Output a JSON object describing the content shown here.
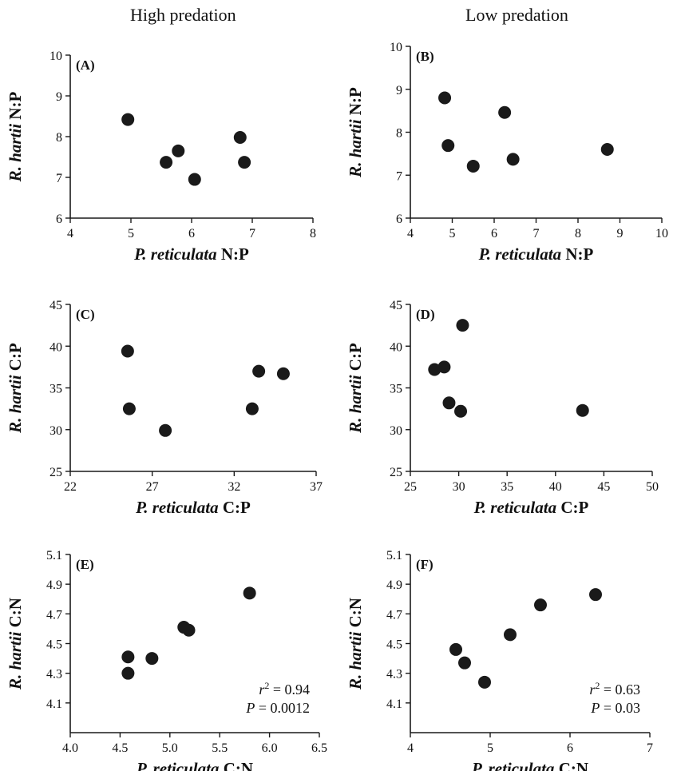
{
  "headers": {
    "left": "High predation",
    "right": "Low predation"
  },
  "colors": {
    "point": "#1a1a1a",
    "axis": "#1a1a1a",
    "background": "#ffffff"
  },
  "chart_data": [
    {
      "id": "A",
      "panel_label": "(A)",
      "type": "scatter",
      "xlabel_italic": "P. reticulata",
      "xlabel_rest": " N:P",
      "ylabel_italic": "R. hartii",
      "ylabel_rest": " N:P",
      "xlim": [
        4,
        8
      ],
      "ylim": [
        6,
        10
      ],
      "xticks": [
        4,
        5,
        6,
        7,
        8
      ],
      "yticks": [
        6,
        7,
        8,
        9,
        10
      ],
      "tick_decimals": 0,
      "points": [
        [
          4.95,
          8.42
        ],
        [
          5.58,
          7.37
        ],
        [
          5.78,
          7.65
        ],
        [
          6.05,
          6.95
        ],
        [
          6.8,
          7.98
        ],
        [
          6.87,
          7.37
        ]
      ],
      "stats": null
    },
    {
      "id": "B",
      "panel_label": "(B)",
      "type": "scatter",
      "xlabel_italic": "P. reticulata",
      "xlabel_rest": " N:P",
      "ylabel_italic": "R. hartii",
      "ylabel_rest": " N:P",
      "xlim": [
        4,
        10
      ],
      "ylim": [
        6,
        10
      ],
      "xticks": [
        4,
        5,
        6,
        7,
        8,
        9,
        10
      ],
      "yticks": [
        6,
        7,
        8,
        9,
        10
      ],
      "tick_decimals": 0,
      "points": [
        [
          4.82,
          8.8
        ],
        [
          4.9,
          7.69
        ],
        [
          5.5,
          7.21
        ],
        [
          6.25,
          8.46
        ],
        [
          6.45,
          7.37
        ],
        [
          8.7,
          7.6
        ]
      ],
      "stats": null
    },
    {
      "id": "C",
      "panel_label": "(C)",
      "type": "scatter",
      "xlabel_italic": "P. reticulata",
      "xlabel_rest": " C:P",
      "ylabel_italic": "R. hartii",
      "ylabel_rest": " C:P",
      "xlim": [
        22,
        37
      ],
      "ylim": [
        25,
        45
      ],
      "xticks": [
        22,
        27,
        32,
        37
      ],
      "yticks": [
        25,
        30,
        35,
        40,
        45
      ],
      "tick_decimals": 0,
      "points": [
        [
          25.5,
          39.4
        ],
        [
          25.6,
          32.5
        ],
        [
          27.8,
          29.9
        ],
        [
          33.1,
          32.5
        ],
        [
          33.5,
          37.0
        ],
        [
          35.0,
          36.7
        ]
      ],
      "stats": null
    },
    {
      "id": "D",
      "panel_label": "(D)",
      "type": "scatter",
      "xlabel_italic": "P. reticulata",
      "xlabel_rest": " C:P",
      "ylabel_italic": "R. hartii",
      "ylabel_rest": " C:P",
      "xlim": [
        25,
        50
      ],
      "ylim": [
        25,
        45
      ],
      "xticks": [
        25,
        30,
        35,
        40,
        45,
        50
      ],
      "yticks": [
        25,
        30,
        35,
        40,
        45
      ],
      "tick_decimals": 0,
      "points": [
        [
          27.5,
          37.2
        ],
        [
          28.5,
          37.5
        ],
        [
          29.0,
          33.2
        ],
        [
          30.2,
          32.2
        ],
        [
          30.4,
          42.5
        ],
        [
          42.8,
          32.3
        ]
      ],
      "stats": null
    },
    {
      "id": "E",
      "panel_label": "(E)",
      "type": "scatter",
      "xlabel_italic": "P. reticulata",
      "xlabel_rest": " C:N",
      "ylabel_italic": "R. hartii",
      "ylabel_rest": " C:N",
      "xlim": [
        4.0,
        6.5
      ],
      "ylim": [
        3.9,
        5.1
      ],
      "xticks": [
        4.0,
        4.5,
        5.0,
        5.5,
        6.0,
        6.5
      ],
      "yticks": [
        4.1,
        4.3,
        4.5,
        4.7,
        4.9,
        5.1
      ],
      "tick_decimals": 1,
      "points": [
        [
          4.58,
          4.41
        ],
        [
          4.58,
          4.3
        ],
        [
          4.82,
          4.4
        ],
        [
          5.14,
          4.61
        ],
        [
          5.19,
          4.59
        ],
        [
          5.8,
          4.84
        ]
      ],
      "stats": {
        "r2_prefix": "r",
        "r2_value": " = 0.94",
        "p_prefix": "P",
        "p_value": " = 0.0012"
      }
    },
    {
      "id": "F",
      "panel_label": "(F)",
      "type": "scatter",
      "xlabel_italic": "P. reticulata",
      "xlabel_rest": " C:N",
      "ylabel_italic": "R. hartii",
      "ylabel_rest": " C:N",
      "xlim": [
        4,
        7
      ],
      "ylim": [
        3.9,
        5.1
      ],
      "xticks": [
        4,
        5,
        6,
        7
      ],
      "yticks": [
        4.1,
        4.3,
        4.5,
        4.7,
        4.9,
        5.1
      ],
      "tick_decimals": 0,
      "ytick_decimals": 1,
      "points": [
        [
          4.57,
          4.46
        ],
        [
          4.68,
          4.37
        ],
        [
          4.93,
          4.24
        ],
        [
          5.25,
          4.56
        ],
        [
          5.63,
          4.76
        ],
        [
          6.32,
          4.83
        ]
      ],
      "stats": {
        "r2_prefix": "r",
        "r2_value": " = 0.63",
        "p_prefix": "P",
        "p_value": " = 0.03"
      }
    }
  ]
}
